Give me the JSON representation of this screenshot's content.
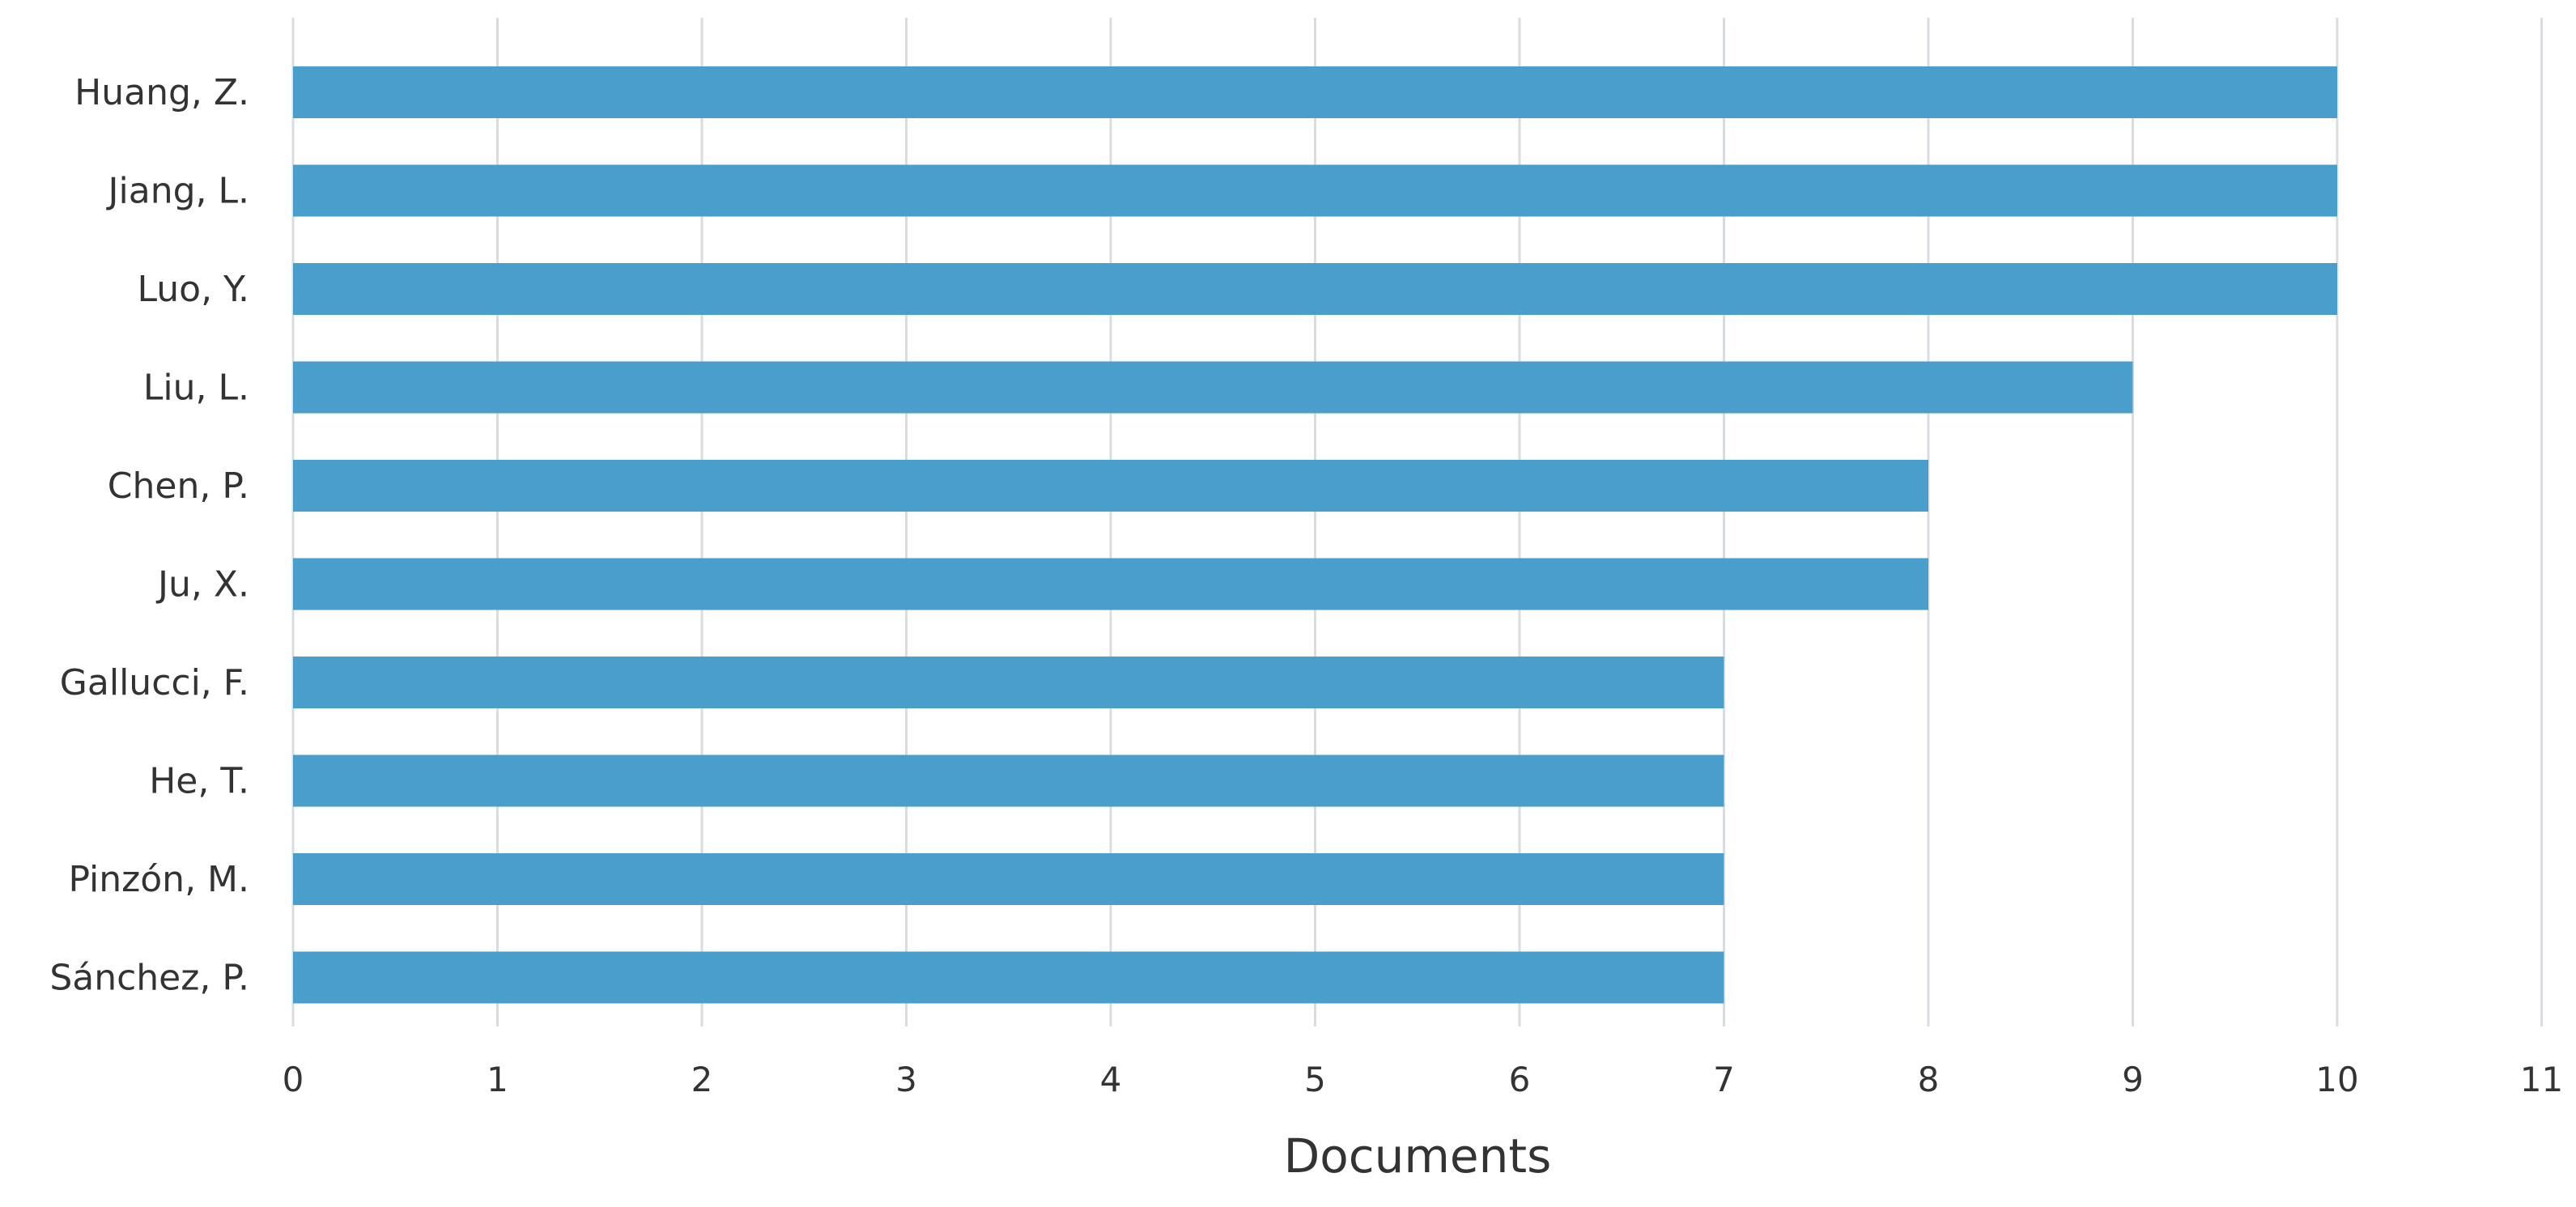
{
  "chart_data": {
    "type": "bar",
    "orientation": "horizontal",
    "categories": [
      "Huang, Z.",
      "Jiang, L.",
      "Luo, Y.",
      "Liu, L.",
      "Chen, P.",
      "Ju, X.",
      "Gallucci, F.",
      "He, T.",
      "Pinzón, M.",
      "Sánchez, P."
    ],
    "values": [
      10,
      10,
      10,
      9,
      8,
      8,
      7,
      7,
      7,
      7
    ],
    "xlabel": "Documents",
    "ylabel": "",
    "title": "",
    "xlim": [
      0,
      11
    ],
    "xticks": [
      "0",
      "1",
      "2",
      "3",
      "4",
      "5",
      "6",
      "7",
      "8",
      "9",
      "10",
      "11"
    ],
    "grid": "vertical",
    "legend": "none",
    "colors": {
      "bar": "#4a9ecb",
      "grid": "#d9dde1",
      "text": "#333333"
    }
  }
}
